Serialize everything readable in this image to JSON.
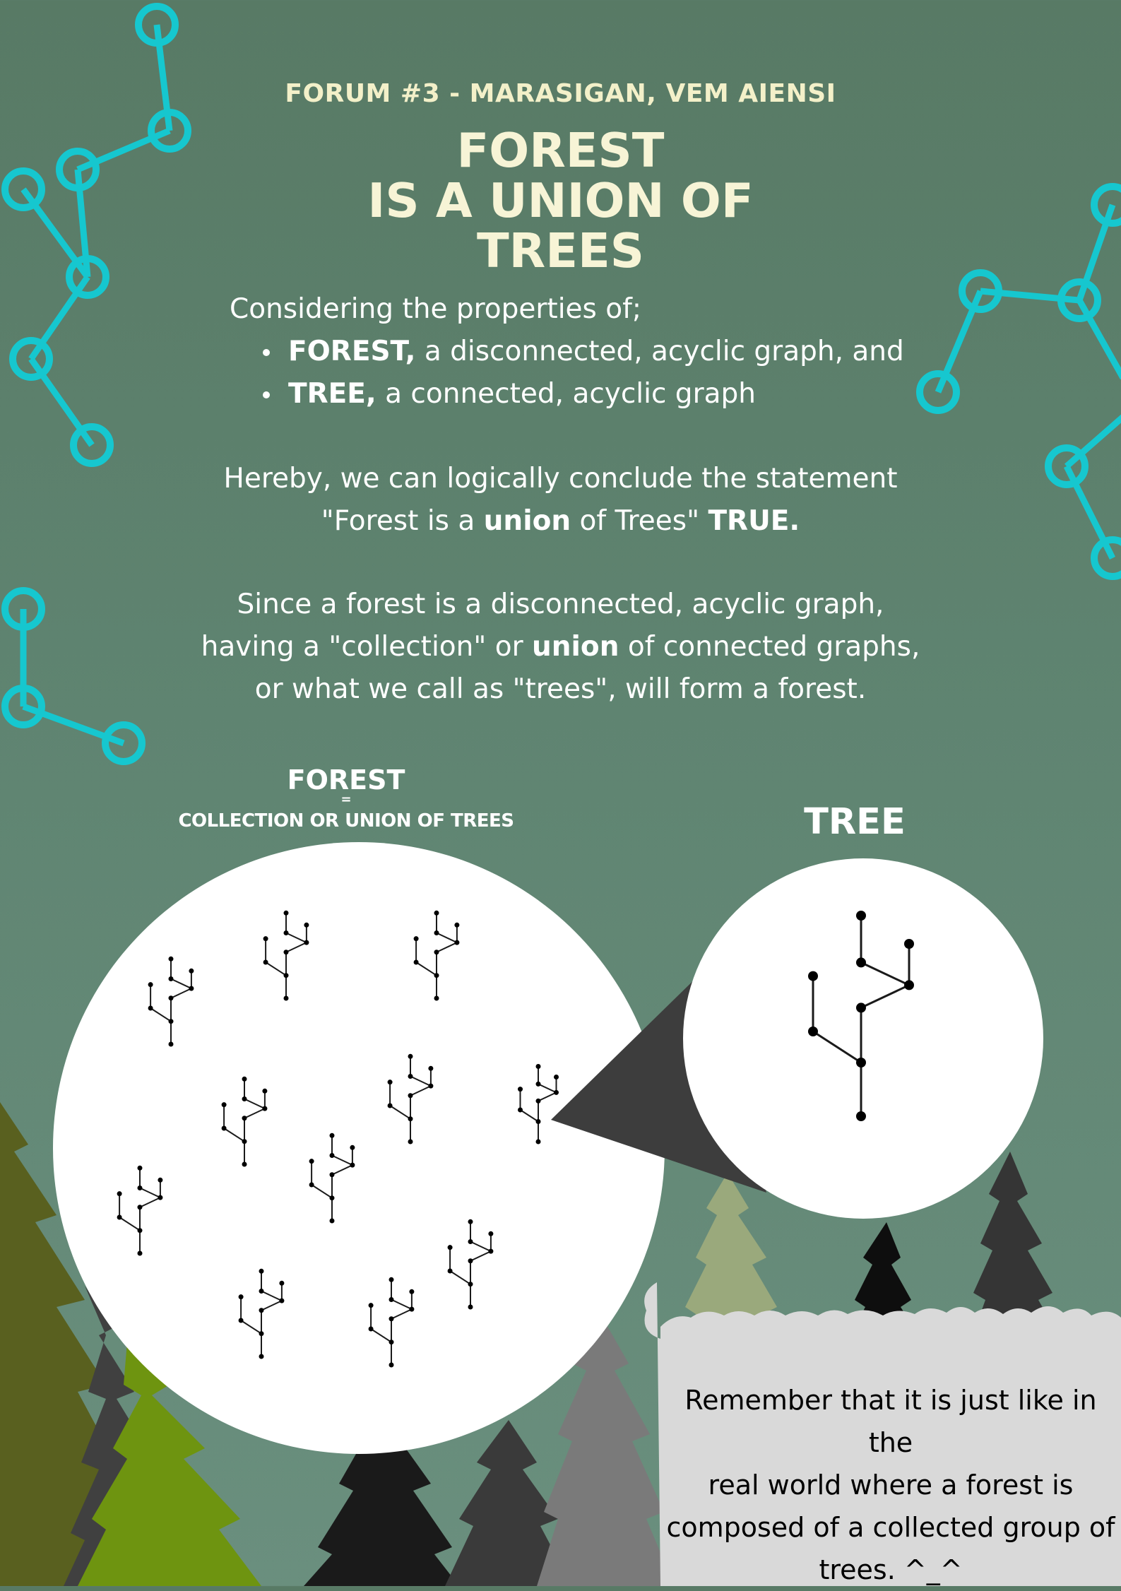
{
  "header": {
    "forum_label": "FORUM #3 - MARASIGAN, VEM AIENSI",
    "title_lines": [
      "FOREST",
      "IS A UNION OF",
      "TREES"
    ]
  },
  "intro": {
    "lead": "Considering the properties of;",
    "bullets": [
      {
        "term": "FOREST,",
        "definition": " a disconnected, acyclic graph, and"
      },
      {
        "term": "TREE,",
        "definition": " a connected, acyclic graph"
      }
    ]
  },
  "conclusion": {
    "line1": "Hereby, we can logically conclude the statement",
    "line2_open_quote": "\"Forest is a ",
    "line2_union": "union",
    "line2_rest": " of Trees\" ",
    "line2_verdict": "TRUE."
  },
  "explanation": {
    "line1": "Since a forest is a disconnected, acyclic graph,",
    "line2_start": "having a \"collection\" or ",
    "line2_union": "union",
    "line2_end": " of connected graphs,",
    "line3": "or what we call as \"trees\", will form a forest."
  },
  "diagram": {
    "forest_label": "FOREST",
    "equals": "=",
    "forest_sublabel": "COLLECTION OR UNION OF TREES",
    "tree_label": "TREE"
  },
  "reminder": {
    "lines": [
      "Remember that it is just like in the",
      "real world where a forest is",
      "composed of a collected group of",
      "trees. ^_^"
    ]
  },
  "colors": {
    "background": "#5f8471",
    "accent_cyan": "#16c7cf",
    "title_cream": "#f7f4d6",
    "callout_gray": "#3d3d3d",
    "reminder_cloud": "#d9d9d9"
  }
}
